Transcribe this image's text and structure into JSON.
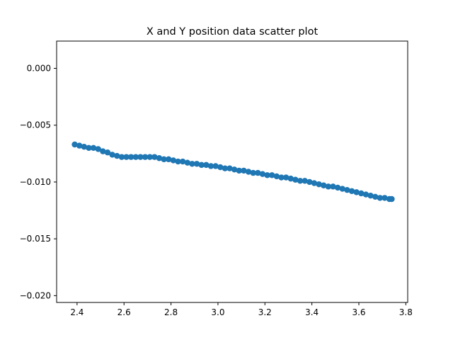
{
  "chart_data": {
    "type": "scatter",
    "title": "X and Y position data scatter plot",
    "xlabel": "",
    "ylabel": "",
    "xlim": [
      2.313,
      3.808
    ],
    "ylim": [
      -0.0206,
      0.0024
    ],
    "xticks": [
      2.4,
      2.6,
      2.8,
      3.0,
      3.2,
      3.4,
      3.6,
      3.8
    ],
    "xtick_labels": [
      "2.4",
      "2.6",
      "2.8",
      "3.0",
      "3.2",
      "3.4",
      "3.6",
      "3.8"
    ],
    "yticks": [
      0.0,
      -0.005,
      -0.01,
      -0.015,
      -0.02
    ],
    "ytick_labels": [
      "0.000",
      "−0.005",
      "−0.010",
      "−0.015",
      "−0.020"
    ],
    "grid": false,
    "color": "#1f77b4",
    "series": [
      {
        "x": [
          2.39,
          2.41,
          2.43,
          2.45,
          2.47,
          2.49,
          2.51,
          2.53,
          2.55,
          2.57,
          2.59,
          2.61,
          2.63,
          2.65,
          2.67,
          2.69,
          2.71,
          2.73,
          2.75,
          2.77,
          2.79,
          2.81,
          2.83,
          2.85,
          2.87,
          2.89,
          2.91,
          2.93,
          2.95,
          2.97,
          2.99,
          3.01,
          3.03,
          3.05,
          3.07,
          3.09,
          3.11,
          3.13,
          3.15,
          3.17,
          3.19,
          3.21,
          3.23,
          3.25,
          3.27,
          3.29,
          3.31,
          3.33,
          3.35,
          3.37,
          3.39,
          3.41,
          3.43,
          3.45,
          3.47,
          3.49,
          3.51,
          3.53,
          3.55,
          3.57,
          3.59,
          3.61,
          3.63,
          3.65,
          3.67,
          3.69,
          3.71,
          3.73,
          3.74
        ],
        "y": [
          -0.0067,
          -0.0068,
          -0.0069,
          -0.007,
          -0.007,
          -0.0071,
          -0.0073,
          -0.0074,
          -0.0076,
          -0.0077,
          -0.0078,
          -0.0078,
          -0.0078,
          -0.0078,
          -0.0078,
          -0.0078,
          -0.0078,
          -0.0078,
          -0.0079,
          -0.008,
          -0.008,
          -0.0081,
          -0.0082,
          -0.0082,
          -0.0083,
          -0.0084,
          -0.0084,
          -0.0085,
          -0.0085,
          -0.0086,
          -0.0086,
          -0.0087,
          -0.0088,
          -0.0088,
          -0.0089,
          -0.009,
          -0.009,
          -0.0091,
          -0.0092,
          -0.0092,
          -0.0093,
          -0.0094,
          -0.0094,
          -0.0095,
          -0.0096,
          -0.0096,
          -0.0097,
          -0.0098,
          -0.0099,
          -0.0099,
          -0.01,
          -0.0101,
          -0.0102,
          -0.0103,
          -0.0104,
          -0.0104,
          -0.0105,
          -0.0106,
          -0.0107,
          -0.0108,
          -0.0109,
          -0.011,
          -0.0111,
          -0.0112,
          -0.0113,
          -0.0114,
          -0.0114,
          -0.0115,
          -0.0115
        ]
      }
    ]
  }
}
